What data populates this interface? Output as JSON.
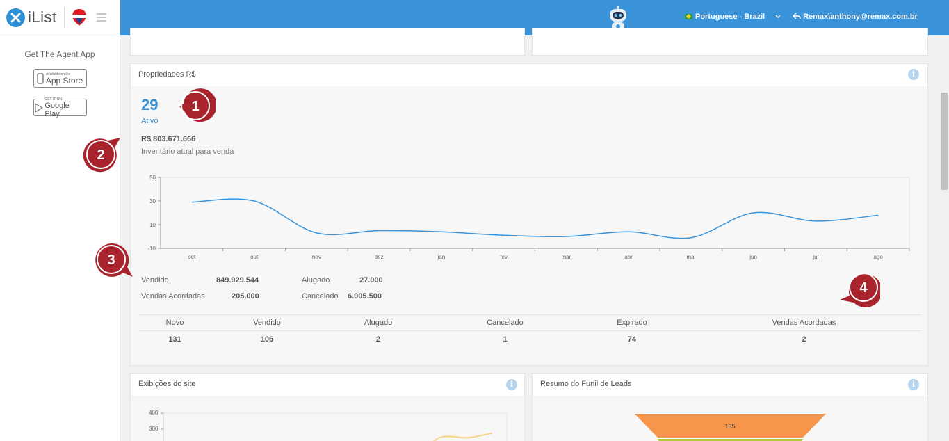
{
  "brand": {
    "name": "iList"
  },
  "sidebar": {
    "agent_app": "Get The Agent App",
    "app_store": {
      "small": "Available on the",
      "big": "App Store"
    },
    "google_play": {
      "small": "GET IT ON",
      "big": "Google Play"
    }
  },
  "topbar": {
    "language": "Portuguese - Brazil",
    "user": "Remax\\anthony@remax.com.br"
  },
  "properties": {
    "title": "Propriedades  R$",
    "active_count": "29",
    "active_label": "Ativo",
    "inventory_value": "R$ 803.671.666",
    "inventory_label": "Inventário atual para venda",
    "stats": [
      {
        "label": "Vendido",
        "value": "849.929.544"
      },
      {
        "label": "Vendas Acordadas",
        "value": "205.000"
      },
      {
        "label": "Alugado",
        "value": "27.000"
      },
      {
        "label": "Cancelado",
        "value": "6.005.500"
      }
    ],
    "summary": {
      "headers": [
        "Novo",
        "Vendido",
        "Alugado",
        "Cancelado",
        "Expirado",
        "Vendas Acordadas"
      ],
      "values": [
        "131",
        "106",
        "2",
        "1",
        "74",
        "2"
      ]
    }
  },
  "chart_data": {
    "type": "line",
    "categories": [
      "set",
      "out",
      "nov",
      "dez",
      "jan",
      "fev",
      "mar",
      "abr",
      "mai",
      "jun",
      "jul",
      "ago"
    ],
    "values": [
      29,
      30,
      3,
      5,
      4,
      1,
      0,
      4,
      -1,
      20,
      13,
      18
    ],
    "yticks": [
      "50",
      "30",
      "10",
      "-10"
    ],
    "ylim": [
      -10,
      50
    ],
    "color": "#3a93d8"
  },
  "badges": [
    "1",
    "2",
    "3",
    "4"
  ],
  "views": {
    "title": "Exibições do site",
    "yticks": [
      "400",
      "300"
    ]
  },
  "funnel": {
    "title": "Resumo do Funil de Leads",
    "top_value": "135"
  },
  "colors": {
    "primary": "#3a93d8",
    "badge": "#a8232c",
    "funnel_orange": "#f7954a",
    "funnel_green": "#b5c93c"
  }
}
